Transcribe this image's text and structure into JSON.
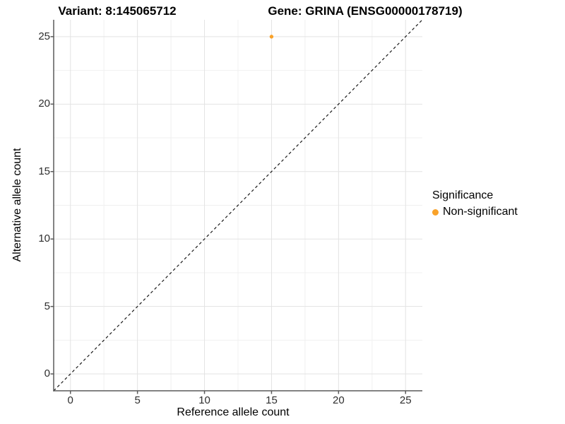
{
  "titles": {
    "left": "Variant: 8:145065712",
    "right": "Gene: GRINA (ENSG00000178719)"
  },
  "chart_data": {
    "type": "scatter",
    "title_left": "Variant: 8:145065712",
    "title_right": "Gene: GRINA (ENSG00000178719)",
    "xlabel": "Reference allele count",
    "ylabel": "Alternative allele count",
    "xlim": [
      -1.25,
      26.25
    ],
    "ylim": [
      -1.25,
      26.25
    ],
    "x_ticks": [
      0,
      5,
      10,
      15,
      20,
      25
    ],
    "y_ticks": [
      0,
      5,
      10,
      15,
      20,
      25
    ],
    "x_minor_ticks": [
      2.5,
      7.5,
      12.5,
      17.5,
      22.5
    ],
    "y_minor_ticks": [
      2.5,
      7.5,
      12.5,
      17.5,
      22.5
    ],
    "grid": true,
    "series": [
      {
        "name": "Non-significant",
        "color": "#F9A22A",
        "points": [
          {
            "x": 15,
            "y": 25
          }
        ]
      }
    ],
    "reference_line": {
      "type": "identity",
      "from": -1.25,
      "to": 26.25,
      "style": "dashed",
      "color": "#1a1a1a"
    },
    "legend": {
      "title": "Significance",
      "position": "right",
      "items": [
        {
          "label": "Non-significant",
          "color": "#F9A22A"
        }
      ]
    }
  },
  "colors": {
    "point": "#F9A22A",
    "grid_major": "#e3e3e3",
    "grid_minor": "#f0f0f0",
    "axis_line": "#5a5a5a",
    "tick_mark": "#5a5a5a",
    "dashed_line": "#1a1a1a"
  }
}
